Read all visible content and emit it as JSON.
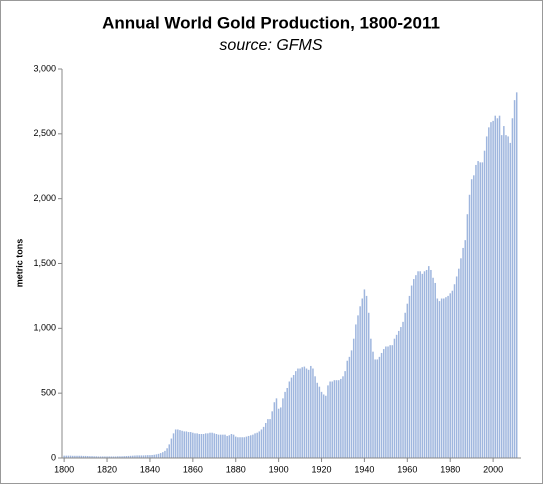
{
  "chart_data": {
    "type": "bar",
    "title": "Annual World Gold Production, 1800-2011",
    "subtitle": "source: GFMS",
    "y_label": "metric tons",
    "color": "#9fb6de",
    "x": [
      1800,
      1801,
      1802,
      1803,
      1804,
      1805,
      1806,
      1807,
      1808,
      1809,
      1810,
      1811,
      1812,
      1813,
      1814,
      1815,
      1816,
      1817,
      1818,
      1819,
      1820,
      1821,
      1822,
      1823,
      1824,
      1825,
      1826,
      1827,
      1828,
      1829,
      1830,
      1831,
      1832,
      1833,
      1834,
      1835,
      1836,
      1837,
      1838,
      1839,
      1840,
      1841,
      1842,
      1843,
      1844,
      1845,
      1846,
      1847,
      1848,
      1849,
      1850,
      1851,
      1852,
      1853,
      1854,
      1855,
      1856,
      1857,
      1858,
      1859,
      1860,
      1861,
      1862,
      1863,
      1864,
      1865,
      1866,
      1867,
      1868,
      1869,
      1870,
      1871,
      1872,
      1873,
      1874,
      1875,
      1876,
      1877,
      1878,
      1879,
      1880,
      1881,
      1882,
      1883,
      1884,
      1885,
      1886,
      1887,
      1888,
      1889,
      1890,
      1891,
      1892,
      1893,
      1894,
      1895,
      1896,
      1897,
      1898,
      1899,
      1900,
      1901,
      1902,
      1903,
      1904,
      1905,
      1906,
      1907,
      1908,
      1909,
      1910,
      1911,
      1912,
      1913,
      1914,
      1915,
      1916,
      1917,
      1918,
      1919,
      1920,
      1921,
      1922,
      1923,
      1924,
      1925,
      1926,
      1927,
      1928,
      1929,
      1930,
      1931,
      1932,
      1933,
      1934,
      1935,
      1936,
      1937,
      1938,
      1939,
      1940,
      1941,
      1942,
      1943,
      1944,
      1945,
      1946,
      1947,
      1948,
      1949,
      1950,
      1951,
      1952,
      1953,
      1954,
      1955,
      1956,
      1957,
      1958,
      1959,
      1960,
      1961,
      1962,
      1963,
      1964,
      1965,
      1966,
      1967,
      1968,
      1969,
      1970,
      1971,
      1972,
      1973,
      1974,
      1975,
      1976,
      1977,
      1978,
      1979,
      1980,
      1981,
      1982,
      1983,
      1984,
      1985,
      1986,
      1987,
      1988,
      1989,
      1990,
      1991,
      1992,
      1993,
      1994,
      1995,
      1996,
      1997,
      1998,
      1999,
      2000,
      2001,
      2002,
      2003,
      2004,
      2005,
      2006,
      2007,
      2008,
      2009,
      2010,
      2011
    ],
    "values": [
      18,
      18,
      18,
      18,
      17,
      17,
      17,
      17,
      17,
      16,
      16,
      15,
      14,
      14,
      13,
      13,
      12,
      12,
      12,
      12,
      12,
      12,
      12,
      12,
      12,
      13,
      13,
      13,
      14,
      15,
      16,
      17,
      18,
      19,
      20,
      20,
      20,
      20,
      21,
      22,
      22,
      23,
      25,
      28,
      32,
      38,
      45,
      55,
      75,
      105,
      150,
      190,
      220,
      220,
      215,
      210,
      205,
      205,
      200,
      200,
      195,
      190,
      190,
      185,
      185,
      185,
      190,
      190,
      195,
      195,
      190,
      185,
      180,
      180,
      180,
      180,
      170,
      175,
      185,
      180,
      165,
      160,
      160,
      160,
      160,
      165,
      170,
      175,
      180,
      190,
      195,
      205,
      220,
      240,
      270,
      300,
      300,
      360,
      430,
      460,
      380,
      390,
      460,
      510,
      540,
      590,
      620,
      640,
      670,
      690,
      690,
      700,
      705,
      690,
      680,
      710,
      690,
      630,
      580,
      550,
      510,
      490,
      480,
      560,
      590,
      590,
      600,
      600,
      600,
      610,
      630,
      670,
      750,
      780,
      830,
      920,
      1030,
      1100,
      1170,
      1230,
      1300,
      1250,
      1120,
      920,
      820,
      760,
      760,
      780,
      810,
      840,
      860,
      860,
      870,
      870,
      920,
      950,
      980,
      1010,
      1050,
      1120,
      1190,
      1250,
      1330,
      1380,
      1410,
      1440,
      1440,
      1420,
      1440,
      1450,
      1480,
      1450,
      1390,
      1350,
      1230,
      1210,
      1230,
      1230,
      1240,
      1250,
      1270,
      1290,
      1340,
      1400,
      1460,
      1540,
      1620,
      1680,
      1880,
      2030,
      2150,
      2180,
      2260,
      2290,
      2280,
      2280,
      2370,
      2480,
      2550,
      2590,
      2600,
      2640,
      2620,
      2640,
      2490,
      2560,
      2490,
      2480,
      2430,
      2620,
      2760,
      2820
    ],
    "xlim": [
      1799,
      2013
    ],
    "xticks": [
      1800,
      1820,
      1840,
      1860,
      1880,
      1900,
      1920,
      1940,
      1960,
      1980,
      2000
    ],
    "ylim": [
      0,
      3000
    ],
    "yticks": [
      0,
      500,
      {
        "value": 1000,
        "label": "1,000"
      },
      {
        "value": 1500,
        "label": "1,500"
      },
      {
        "value": 2000,
        "label": "2,000"
      },
      {
        "value": 2500,
        "label": "2,500"
      },
      {
        "value": 3000,
        "label": "3,000"
      }
    ],
    "grid": false
  }
}
